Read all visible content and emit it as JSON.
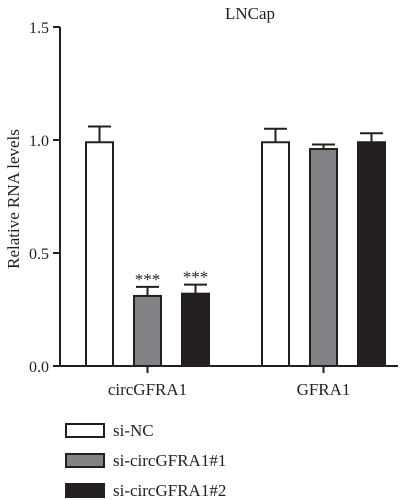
{
  "chart_data": {
    "type": "bar",
    "title": "LNCap",
    "ylabel": "Relative RNA levels",
    "xlabel": "",
    "ylim": [
      0,
      1.5
    ],
    "yticks": [
      "0.0",
      "0.5",
      "1.0",
      "1.5"
    ],
    "categories": [
      "circGFRA1",
      "GFRA1"
    ],
    "series": [
      {
        "name": "si-NC",
        "color": "#ffffff",
        "values": [
          0.99,
          0.99
        ],
        "errors": [
          0.07,
          0.06
        ],
        "annotations": [
          "",
          ""
        ]
      },
      {
        "name": "si-circGFRA1#1",
        "color": "#808285",
        "values": [
          0.31,
          0.96
        ],
        "errors": [
          0.04,
          0.02
        ],
        "annotations": [
          "***",
          ""
        ]
      },
      {
        "name": "si-circGFRA1#2",
        "color": "#231f20",
        "values": [
          0.32,
          0.99
        ],
        "errors": [
          0.04,
          0.04
        ],
        "annotations": [
          "***",
          ""
        ]
      }
    ],
    "legend_position": "bottom-left",
    "grid": false
  }
}
